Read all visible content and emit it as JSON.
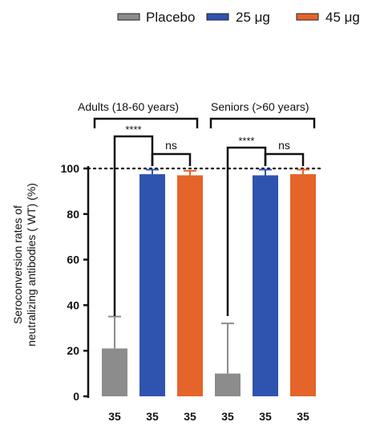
{
  "legend": [
    {
      "name": "Placebo",
      "color": "#8c8c8c"
    },
    {
      "name": "25 μg",
      "color": "#2f54b0"
    },
    {
      "name": "45 μg",
      "color": "#e4642a"
    }
  ],
  "chart_data": {
    "type": "bar",
    "ylabel_line1": "Seroconversion rates of",
    "ylabel_line2": "neutralizing antibodies ( WT)  (%)",
    "ylim": [
      0,
      100
    ],
    "yticks": [
      0,
      20,
      40,
      60,
      80,
      100
    ],
    "reference_line": 100,
    "groups": [
      {
        "label": "Adults (18-60 years)"
      },
      {
        "label": "Seniors (>60 years)"
      }
    ],
    "bars": [
      {
        "series": "Placebo",
        "group": 0,
        "value": 21,
        "error": 14,
        "n": "35"
      },
      {
        "series": "25 μg",
        "group": 0,
        "value": 97.5,
        "error": 2,
        "n": "35"
      },
      {
        "series": "45 μg",
        "group": 0,
        "value": 97,
        "error": 2,
        "n": "35"
      },
      {
        "series": "Placebo",
        "group": 1,
        "value": 10,
        "error": 22,
        "n": "35"
      },
      {
        "series": "25 μg",
        "group": 1,
        "value": 97,
        "error": 2.5,
        "n": "35"
      },
      {
        "series": "45 μg",
        "group": 1,
        "value": 97.5,
        "error": 2,
        "n": "35"
      }
    ],
    "significance": [
      {
        "group": 0,
        "label": "****"
      },
      {
        "group": 0,
        "label": "ns"
      },
      {
        "group": 1,
        "label": "****"
      },
      {
        "group": 1,
        "label": "ns"
      }
    ]
  }
}
